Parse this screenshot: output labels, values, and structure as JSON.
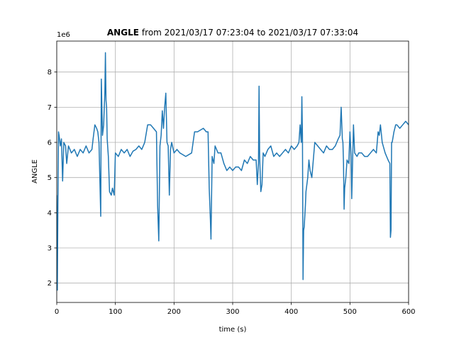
{
  "chart_data": {
    "type": "line",
    "title_name": "ANGLE",
    "title_range": "from 2021/03/17 07:23:04 to 2021/03/17 07:33:04",
    "x_label": "time (s)",
    "y_label": "ANGLE",
    "y_offset_label": "1e6",
    "xlim": [
      0,
      600
    ],
    "ylim": [
      1.45,
      8.88
    ],
    "xticks": [
      0,
      100,
      200,
      300,
      400,
      500,
      600
    ],
    "yticks": [
      2,
      3,
      4,
      5,
      6,
      7,
      8
    ],
    "grid": true,
    "series": [
      {
        "name": "ANGLE",
        "color": "#1f77b4",
        "x": [
          0,
          1,
          2,
          3,
          4,
          6,
          8,
          10,
          12,
          15,
          17,
          20,
          25,
          30,
          35,
          40,
          45,
          50,
          55,
          60,
          62,
          65,
          68,
          70,
          72,
          75,
          76,
          78,
          80,
          82,
          83,
          84,
          85,
          86,
          88,
          90,
          93,
          95,
          98,
          100,
          105,
          110,
          115,
          120,
          125,
          130,
          135,
          140,
          145,
          150,
          155,
          160,
          165,
          170,
          172,
          174,
          176,
          178,
          180,
          182,
          184,
          186,
          188,
          190,
          192,
          194,
          196,
          200,
          205,
          210,
          220,
          230,
          235,
          240,
          250,
          255,
          258,
          260,
          262,
          263,
          265,
          268,
          270,
          275,
          280,
          285,
          290,
          295,
          300,
          305,
          310,
          315,
          320,
          325,
          330,
          335,
          340,
          342,
          344,
          345,
          346,
          348,
          350,
          352,
          355,
          360,
          365,
          370,
          375,
          380,
          385,
          390,
          395,
          400,
          405,
          410,
          413,
          415,
          417,
          418,
          419,
          420,
          421,
          422,
          424,
          425,
          428,
          430,
          432,
          435,
          438,
          440,
          445,
          450,
          455,
          460,
          465,
          470,
          475,
          480,
          483,
          485,
          487,
          488,
          489,
          490,
          491,
          493,
          495,
          498,
          500,
          502,
          503,
          505,
          506,
          508,
          512,
          515,
          520,
          525,
          530,
          535,
          540,
          545,
          548,
          550,
          552,
          555,
          560,
          565,
          568,
          569,
          570,
          571,
          572,
          575,
          578,
          580,
          585,
          590,
          595,
          600
        ],
        "values": [
          4.5,
          1.8,
          4.3,
          6.3,
          6.2,
          5.9,
          6.1,
          4.9,
          6.0,
          5.9,
          5.4,
          5.9,
          5.7,
          5.8,
          5.6,
          5.8,
          5.7,
          5.9,
          5.7,
          5.8,
          6.1,
          6.5,
          6.4,
          6.3,
          6.0,
          3.9,
          7.8,
          6.2,
          6.5,
          7.4,
          8.55,
          7.2,
          7.0,
          6.1,
          5.6,
          4.6,
          4.5,
          4.7,
          4.5,
          5.7,
          5.6,
          5.8,
          5.7,
          5.8,
          5.6,
          5.75,
          5.8,
          5.9,
          5.8,
          6.0,
          6.5,
          6.5,
          6.4,
          6.3,
          4.2,
          3.2,
          5.9,
          6.2,
          6.9,
          6.4,
          7.0,
          7.4,
          6.0,
          5.9,
          4.5,
          5.8,
          6.0,
          5.7,
          5.8,
          5.7,
          5.6,
          5.7,
          6.3,
          6.3,
          6.4,
          6.3,
          6.3,
          4.7,
          3.8,
          3.25,
          5.6,
          5.4,
          5.9,
          5.7,
          5.7,
          5.4,
          5.2,
          5.3,
          5.2,
          5.3,
          5.3,
          5.2,
          5.5,
          5.4,
          5.6,
          5.5,
          5.5,
          4.8,
          5.4,
          7.6,
          5.6,
          4.6,
          4.8,
          5.7,
          5.6,
          5.8,
          5.9,
          5.6,
          5.7,
          5.6,
          5.7,
          5.8,
          5.7,
          5.9,
          5.8,
          5.9,
          6.0,
          6.5,
          6.0,
          7.3,
          6.2,
          2.1,
          3.5,
          3.6,
          4.2,
          4.6,
          5.0,
          5.5,
          5.2,
          5.0,
          5.6,
          6.0,
          5.9,
          5.8,
          5.7,
          5.9,
          5.8,
          5.8,
          5.9,
          6.1,
          6.2,
          7.0,
          6.1,
          6.0,
          5.4,
          4.1,
          4.7,
          5.0,
          5.5,
          5.4,
          6.3,
          5.6,
          4.4,
          5.8,
          6.5,
          5.7,
          5.6,
          5.7,
          5.7,
          5.6,
          5.6,
          5.7,
          5.8,
          5.7,
          6.3,
          6.2,
          6.5,
          6.0,
          5.7,
          5.5,
          5.4,
          3.3,
          3.5,
          6.0,
          6.0,
          6.3,
          6.5,
          6.5,
          6.4,
          6.5,
          6.6,
          6.5
        ]
      }
    ]
  }
}
